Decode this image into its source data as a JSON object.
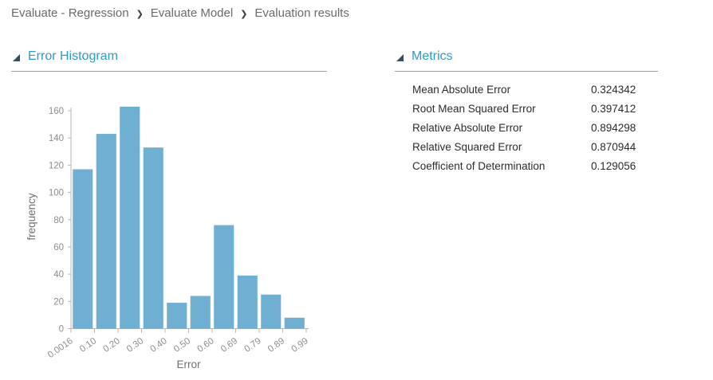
{
  "breadcrumb": {
    "separator": "❯",
    "items": [
      {
        "label": "Evaluate - Regression"
      },
      {
        "label": "Evaluate Model"
      },
      {
        "label": "Evaluation results"
      }
    ]
  },
  "sections": {
    "histogram": {
      "title": "Error Histogram"
    },
    "metrics": {
      "title": "Metrics",
      "rows": [
        {
          "label": "Mean Absolute Error",
          "value": "0.324342"
        },
        {
          "label": "Root Mean Squared Error",
          "value": "0.397412"
        },
        {
          "label": "Relative Absolute Error",
          "value": "0.894298"
        },
        {
          "label": "Relative Squared Error",
          "value": "0.870944"
        },
        {
          "label": "Coefficient of Determination",
          "value": "0.129056"
        }
      ]
    }
  },
  "chart_data": {
    "type": "bar",
    "title": "Error Histogram",
    "xlabel": "Error",
    "ylabel": "frequency",
    "bin_edges": [
      "0.0016",
      "0.10",
      "0.20",
      "0.30",
      "0.40",
      "0.50",
      "0.60",
      "0.69",
      "0.79",
      "0.89",
      "0.99"
    ],
    "values": [
      117,
      143,
      163,
      133,
      19,
      24,
      76,
      39,
      25,
      8
    ],
    "ylim": [
      0,
      160
    ],
    "ytick_step": 20,
    "grid": false,
    "legend": "none",
    "bar_color": "#6fafd2"
  },
  "colors": {
    "accent_blue": "#2e9ac6",
    "bar_blue": "#6fafd2",
    "section_underline": "#7ea7b8",
    "collapse_triangle": "#364f5e",
    "axis_gray": "#b5b5b5",
    "tick_text_gray": "#8c8c8c"
  }
}
